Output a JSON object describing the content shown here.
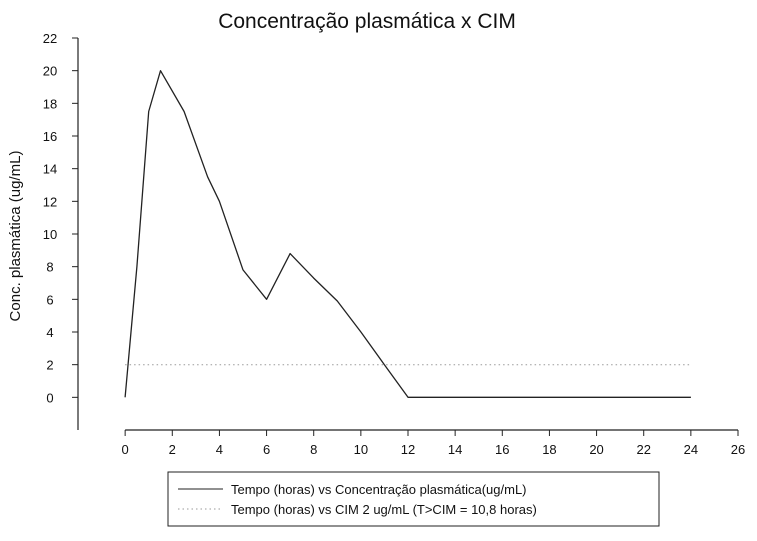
{
  "chart_data": {
    "type": "line",
    "title": "Concentração plasmática x CIM",
    "xlabel": "",
    "ylabel": "Conc. plasmática (ug/mL)",
    "xlim": [
      -2,
      26
    ],
    "ylim": [
      -2,
      22
    ],
    "xticks": [
      0,
      2,
      4,
      6,
      8,
      10,
      12,
      14,
      16,
      18,
      20,
      22,
      24,
      26
    ],
    "yticks": [
      0,
      2,
      4,
      6,
      8,
      10,
      12,
      14,
      16,
      18,
      20,
      22
    ],
    "xtick_labels": [
      "0",
      "2",
      "4",
      "6",
      "8",
      "10",
      "12",
      "14",
      "16",
      "18",
      "20",
      "22",
      "24",
      "26"
    ],
    "ytick_labels": [
      "0",
      "2",
      "4",
      "6",
      "8",
      "10",
      "12",
      "14",
      "16",
      "18",
      "20",
      "22"
    ],
    "grid": false,
    "legend_position": "bottom",
    "series": [
      {
        "name": "Tempo (horas) vs Concentração plasmática(ug/mL)",
        "style": "solid",
        "color": "#222222",
        "x": [
          0,
          0.5,
          1,
          1.5,
          2.5,
          3.5,
          4,
          5,
          6,
          7,
          8,
          9,
          10,
          11,
          12,
          24
        ],
        "y": [
          0,
          8,
          17.5,
          20,
          17.5,
          13.5,
          12,
          7.8,
          6,
          8.8,
          7.3,
          5.9,
          4,
          2,
          0,
          0
        ]
      },
      {
        "name": "Tempo (horas) vs CIM 2 ug/mL (T>CIM = 10,8 horas)",
        "style": "dotted",
        "color": "#9a9a9a",
        "x": [
          0,
          24
        ],
        "y": [
          2,
          2
        ]
      }
    ]
  }
}
